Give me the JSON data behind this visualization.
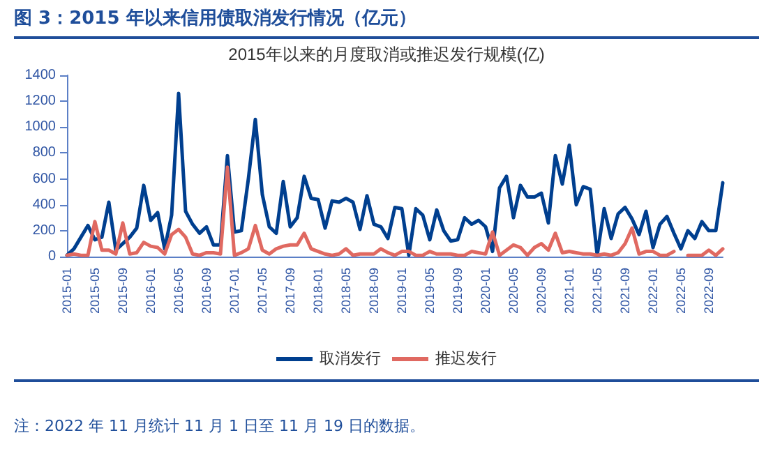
{
  "chart_data": {
    "type": "line",
    "title": "图 3：2015 年以来信用债取消发行情况（亿元）",
    "subtitle": "2015年以来的月度取消或推迟发行规模(亿)",
    "annotations": [
      "注：2022 年 11 月统计 11 月 1 日至 11 月 19 日的数据。"
    ],
    "categories": [
      "2015-01",
      null,
      null,
      null,
      "2015-05",
      null,
      null,
      null,
      "2015-09",
      null,
      null,
      null,
      "2016-01",
      null,
      null,
      null,
      "2016-05",
      null,
      null,
      null,
      "2016-09",
      null,
      null,
      null,
      "2017-01",
      null,
      null,
      null,
      "2017-05",
      null,
      null,
      null,
      "2017-09",
      null,
      null,
      null,
      "2018-01",
      null,
      null,
      null,
      "2018-05",
      null,
      null,
      null,
      "2018-09",
      null,
      null,
      null,
      "2019-01",
      null,
      null,
      null,
      "2019-05",
      null,
      null,
      null,
      "2019-09",
      null,
      null,
      null,
      "2020-01",
      null,
      null,
      null,
      "2020-05",
      null,
      null,
      null,
      "2020-09",
      null,
      null,
      null,
      "2021-01",
      null,
      null,
      null,
      "2021-05",
      null,
      null,
      null,
      "2021-09",
      null,
      null,
      null,
      "2022-01",
      null,
      null,
      null,
      "2022-05",
      null,
      null,
      null,
      "2022-09",
      null,
      null
    ],
    "series": [
      {
        "name": "取消发行",
        "color": "#003f8f",
        "values": [
          10,
          60,
          150,
          240,
          130,
          150,
          420,
          50,
          100,
          150,
          220,
          550,
          280,
          340,
          60,
          320,
          1260,
          350,
          250,
          180,
          230,
          90,
          90,
          780,
          190,
          200,
          600,
          1060,
          480,
          230,
          180,
          580,
          230,
          300,
          620,
          450,
          440,
          220,
          430,
          420,
          450,
          420,
          210,
          470,
          250,
          230,
          140,
          380,
          370,
          10,
          370,
          320,
          130,
          360,
          200,
          120,
          130,
          300,
          250,
          280,
          230,
          40,
          530,
          620,
          300,
          550,
          460,
          460,
          490,
          260,
          780,
          560,
          860,
          400,
          540,
          520,
          10,
          370,
          140,
          330,
          380,
          290,
          170,
          350,
          70,
          250,
          310,
          180,
          60,
          200,
          140,
          270,
          200,
          200,
          570
        ]
      },
      {
        "name": "推迟发行",
        "color": "#e06961",
        "values": [
          10,
          20,
          10,
          10,
          270,
          50,
          50,
          20,
          260,
          20,
          30,
          110,
          80,
          70,
          20,
          170,
          210,
          150,
          20,
          10,
          30,
          30,
          20,
          690,
          10,
          30,
          60,
          240,
          50,
          20,
          60,
          80,
          90,
          90,
          180,
          60,
          40,
          20,
          10,
          20,
          60,
          10,
          20,
          20,
          20,
          60,
          30,
          10,
          40,
          40,
          10,
          10,
          40,
          20,
          20,
          20,
          10,
          10,
          40,
          30,
          20,
          190,
          10,
          50,
          90,
          70,
          10,
          70,
          100,
          50,
          180,
          30,
          40,
          30,
          20,
          20,
          10,
          20,
          10,
          30,
          100,
          220,
          20,
          40,
          40,
          10,
          10,
          40,
          null,
          10,
          10,
          10,
          50,
          10,
          60
        ]
      }
    ],
    "ylim": [
      0,
      1400
    ],
    "yticks": [
      0,
      200,
      400,
      600,
      800,
      1000,
      1200,
      1400
    ],
    "grid": false,
    "legend": "bottom",
    "marker": "none",
    "line_style": "solid"
  }
}
